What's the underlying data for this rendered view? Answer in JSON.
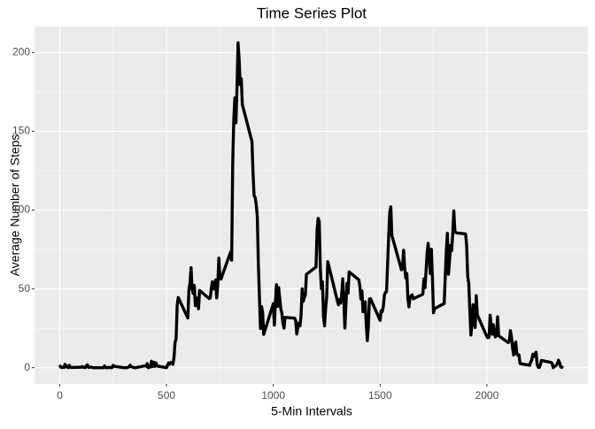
{
  "chart_data": {
    "type": "line",
    "title": "Time Series Plot",
    "x_label": "5-Min Intervals",
    "y_label": "Average Number of Steps",
    "x": [
      0,
      5,
      10,
      15,
      20,
      25,
      30,
      35,
      40,
      45,
      50,
      55,
      100,
      105,
      110,
      115,
      120,
      125,
      130,
      135,
      140,
      145,
      150,
      155,
      200,
      205,
      210,
      215,
      220,
      225,
      230,
      235,
      240,
      245,
      250,
      255,
      300,
      305,
      310,
      315,
      320,
      325,
      330,
      335,
      340,
      345,
      350,
      355,
      400,
      405,
      410,
      415,
      420,
      425,
      430,
      435,
      440,
      445,
      450,
      455,
      500,
      505,
      510,
      515,
      520,
      525,
      530,
      535,
      540,
      545,
      550,
      555,
      600,
      605,
      610,
      615,
      620,
      625,
      630,
      635,
      640,
      645,
      650,
      655,
      700,
      705,
      710,
      715,
      720,
      725,
      730,
      735,
      740,
      745,
      750,
      755,
      800,
      805,
      810,
      815,
      820,
      825,
      830,
      835,
      840,
      845,
      850,
      855,
      900,
      905,
      910,
      915,
      920,
      925,
      930,
      935,
      940,
      945,
      950,
      955,
      1000,
      1005,
      1010,
      1015,
      1020,
      1025,
      1030,
      1035,
      1040,
      1045,
      1050,
      1055,
      1100,
      1105,
      1110,
      1115,
      1120,
      1125,
      1130,
      1135,
      1140,
      1145,
      1150,
      1155,
      1200,
      1205,
      1210,
      1215,
      1220,
      1225,
      1230,
      1235,
      1240,
      1245,
      1250,
      1255,
      1300,
      1305,
      1310,
      1315,
      1320,
      1325,
      1330,
      1335,
      1340,
      1345,
      1350,
      1355,
      1400,
      1405,
      1410,
      1415,
      1420,
      1425,
      1430,
      1435,
      1440,
      1445,
      1450,
      1455,
      1500,
      1505,
      1510,
      1515,
      1520,
      1525,
      1530,
      1535,
      1540,
      1545,
      1550,
      1555,
      1600,
      1605,
      1610,
      1615,
      1620,
      1625,
      1630,
      1635,
      1640,
      1645,
      1650,
      1655,
      1700,
      1705,
      1710,
      1715,
      1720,
      1725,
      1730,
      1735,
      1740,
      1745,
      1750,
      1755,
      1800,
      1805,
      1810,
      1815,
      1820,
      1825,
      1830,
      1835,
      1840,
      1845,
      1850,
      1855,
      1900,
      1905,
      1910,
      1915,
      1920,
      1925,
      1930,
      1935,
      1940,
      1945,
      1950,
      1955,
      2000,
      2005,
      2010,
      2015,
      2020,
      2025,
      2030,
      2035,
      2040,
      2045,
      2050,
      2055,
      2100,
      2105,
      2110,
      2115,
      2120,
      2125,
      2130,
      2135,
      2140,
      2145,
      2150,
      2155,
      2200,
      2205,
      2210,
      2215,
      2220,
      2225,
      2230,
      2235,
      2240,
      2245,
      2250,
      2255,
      2300,
      2305,
      2310,
      2315,
      2320,
      2325,
      2330,
      2335,
      2340,
      2345,
      2350,
      2355
    ],
    "values": [
      1.7,
      0.3,
      0.1,
      0.2,
      0.1,
      2.1,
      0.5,
      0.9,
      0,
      1.5,
      0.3,
      0.1,
      0.3,
      0.7,
      0.2,
      0.3,
      0,
      1.1,
      1.8,
      0.2,
      0.2,
      0.4,
      0.3,
      0,
      0,
      0,
      1.1,
      0,
      0,
      0.1,
      0,
      0.2,
      0,
      0,
      1.5,
      0.9,
      0,
      0,
      0,
      0,
      0.2,
      0.6,
      1.6,
      0.6,
      0.5,
      0.1,
      0,
      0,
      1.2,
      0.9,
      2.6,
      0,
      0.3,
      0.4,
      4.1,
      0.7,
      3.5,
      0.8,
      3.1,
      1.1,
      0,
      1.6,
      3,
      2.2,
      3.3,
      3,
      2.1,
      6.1,
      16,
      18.3,
      39.5,
      44.5,
      31.5,
      49.3,
      53.8,
      63.5,
      50,
      47.1,
      52.2,
      39.3,
      44,
      44.2,
      37.4,
      49,
      43.8,
      44.4,
      50.5,
      54.5,
      49.9,
      51,
      55.7,
      44.3,
      52.3,
      69.5,
      57.8,
      56.2,
      73.4,
      68.2,
      129.4,
      157.5,
      171.2,
      155.4,
      177.3,
      206.2,
      195.9,
      179.6,
      183.4,
      167,
      143.5,
      124,
      109.1,
      108.1,
      103.7,
      96,
      66.2,
      45.2,
      24.8,
      38.8,
      35,
      21.1,
      40.6,
      27,
      42.4,
      52.7,
      38.9,
      50.8,
      44.3,
      37.4,
      34.7,
      28.3,
      25.1,
      31.9,
      31.4,
      29.7,
      21.3,
      25.5,
      28.4,
      26.5,
      33.4,
      50,
      42,
      44.6,
      46,
      59.2,
      63.9,
      87.7,
      94.8,
      92.8,
      63.4,
      50.2,
      54.5,
      32.4,
      26.5,
      37.7,
      45.1,
      67.3,
      42.3,
      39.9,
      43.3,
      41,
      46.2,
      56.4,
      42.8,
      25.1,
      40,
      53.5,
      47.3,
      60.8,
      55.8,
      52,
      43.6,
      48.7,
      35.5,
      37.5,
      41.8,
      27.5,
      17.1,
      26.1,
      43.6,
      43.8,
      30,
      36.1,
      35.5,
      38.8,
      46,
      47.8,
      48.1,
      65.3,
      82.9,
      98.7,
      102.1,
      84,
      62.1,
      64.1,
      74.5,
      63.2,
      56.9,
      59.8,
      43.9,
      38.6,
      44.7,
      45.5,
      46.2,
      43.7,
      46.6,
      56.3,
      50.7,
      61.2,
      72.7,
      78.9,
      68.9,
      59.7,
      75.1,
      56.5,
      34.8,
      37.5,
      40.7,
      58,
      74.7,
      85.3,
      59.3,
      67.8,
      77.7,
      74.2,
      85.3,
      99.5,
      86.6,
      85.6,
      84.9,
      77.8,
      58,
      53.4,
      36.3,
      20.7,
      27.4,
      40,
      30.2,
      25.5,
      45.7,
      33.5,
      19.6,
      19,
      19.3,
      33.3,
      26.8,
      21.2,
      27.3,
      21.3,
      19.5,
      21.3,
      32.3,
      20.2,
      15.9,
      17.2,
      23.5,
      19.2,
      12.5,
      8,
      14.7,
      16.3,
      8.7,
      7.8,
      8.1,
      2.6,
      1.5,
      3.7,
      4.8,
      8.5,
      7.1,
      8.7,
      9.8,
      2.2,
      0.3,
      0.1,
      1.6,
      4.6,
      3.3,
      2.8,
      0,
      0.8,
      1,
      1.6,
      2.6,
      4.7,
      3.3,
      0.6,
      0.2,
      1.1
    ],
    "color": "#000000",
    "xlim": [
      -117.75,
      2472.75
    ],
    "xticks": [
      0,
      500,
      1000,
      1500,
      2000
    ],
    "ylim": [
      -10.3,
      216.5
    ],
    "yticks": [
      0,
      50,
      100,
      150,
      200
    ],
    "grid": true,
    "minor_grid": true
  }
}
